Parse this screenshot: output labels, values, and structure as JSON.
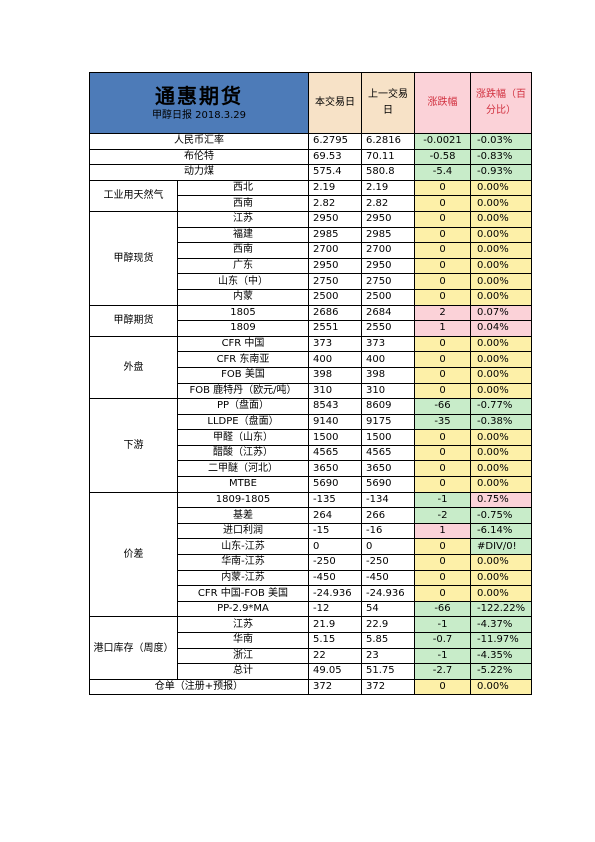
{
  "header": {
    "company": "通惠期货",
    "subtitle": "甲醇日报 2018.3.29",
    "col_today": "本交易日",
    "col_prev": "上一交易日",
    "col_change": "涨跌幅",
    "col_pct": "涨跌幅（百分比）"
  },
  "colors": {
    "title_bg": "#4d7bb8",
    "header_bg": "#f7e2c7",
    "up": "#fbd2d8",
    "down": "#c8ecc9",
    "flat": "#fdf0a8"
  },
  "rows": [
    {
      "label": "人民币汇率",
      "today": "6.2795",
      "prev": "6.2816",
      "change": "-0.0021",
      "pct": "-0.03%",
      "change_color": "green",
      "pct_color": "green"
    },
    {
      "label": "布伦特",
      "today": "69.53",
      "prev": "70.11",
      "change": "-0.58",
      "pct": "-0.83%",
      "change_color": "green",
      "pct_color": "green"
    },
    {
      "label": "动力煤",
      "today": "575.4",
      "prev": "580.8",
      "change": "-5.4",
      "pct": "-0.93%",
      "change_color": "green",
      "pct_color": "green"
    },
    {
      "group": "工业用天然气",
      "label": "西北",
      "today": "2.19",
      "prev": "2.19",
      "change": "0",
      "pct": "0.00%",
      "change_color": "yellow",
      "pct_color": "yellow"
    },
    {
      "label": "西南",
      "today": "2.82",
      "prev": "2.82",
      "change": "0",
      "pct": "0.00%",
      "change_color": "yellow",
      "pct_color": "yellow"
    },
    {
      "group": "甲醇现货",
      "label": "江苏",
      "today": "2950",
      "prev": "2950",
      "change": "0",
      "pct": "0.00%",
      "change_color": "yellow",
      "pct_color": "yellow"
    },
    {
      "label": "福建",
      "today": "2985",
      "prev": "2985",
      "change": "0",
      "pct": "0.00%",
      "change_color": "yellow",
      "pct_color": "yellow"
    },
    {
      "label": "西南",
      "today": "2700",
      "prev": "2700",
      "change": "0",
      "pct": "0.00%",
      "change_color": "yellow",
      "pct_color": "yellow"
    },
    {
      "label": "广东",
      "today": "2950",
      "prev": "2950",
      "change": "0",
      "pct": "0.00%",
      "change_color": "yellow",
      "pct_color": "yellow"
    },
    {
      "label": "山东（中）",
      "today": "2750",
      "prev": "2750",
      "change": "0",
      "pct": "0.00%",
      "change_color": "yellow",
      "pct_color": "yellow"
    },
    {
      "label": "内蒙",
      "today": "2500",
      "prev": "2500",
      "change": "0",
      "pct": "0.00%",
      "change_color": "yellow",
      "pct_color": "yellow"
    },
    {
      "group": "甲醇期货",
      "label": "1805",
      "today": "2686",
      "prev": "2684",
      "change": "2",
      "pct": "0.07%",
      "change_color": "pink",
      "pct_color": "pink"
    },
    {
      "label": "1809",
      "today": "2551",
      "prev": "2550",
      "change": "1",
      "pct": "0.04%",
      "change_color": "pink",
      "pct_color": "pink"
    },
    {
      "group": "外盘",
      "label": "CFR 中国",
      "today": "373",
      "prev": "373",
      "change": "0",
      "pct": "0.00%",
      "change_color": "yellow",
      "pct_color": "yellow"
    },
    {
      "label": "CFR 东南亚",
      "today": "400",
      "prev": "400",
      "change": "0",
      "pct": "0.00%",
      "change_color": "yellow",
      "pct_color": "yellow"
    },
    {
      "label": "FOB 美国",
      "today": "398",
      "prev": "398",
      "change": "0",
      "pct": "0.00%",
      "change_color": "yellow",
      "pct_color": "yellow"
    },
    {
      "label": "FOB 鹿特丹（欧元/吨）",
      "today": "310",
      "prev": "310",
      "change": "0",
      "pct": "0.00%",
      "change_color": "yellow",
      "pct_color": "yellow"
    },
    {
      "group": "下游",
      "label": "PP（盘面）",
      "today": "8543",
      "prev": "8609",
      "change": "-66",
      "pct": "-0.77%",
      "change_color": "green",
      "pct_color": "green"
    },
    {
      "label": "LLDPE（盘面）",
      "today": "9140",
      "prev": "9175",
      "change": "-35",
      "pct": "-0.38%",
      "change_color": "green",
      "pct_color": "green"
    },
    {
      "label": "甲醛（山东）",
      "today": "1500",
      "prev": "1500",
      "change": "0",
      "pct": "0.00%",
      "change_color": "yellow",
      "pct_color": "yellow"
    },
    {
      "label": "醋酸（江苏）",
      "today": "4565",
      "prev": "4565",
      "change": "0",
      "pct": "0.00%",
      "change_color": "yellow",
      "pct_color": "yellow"
    },
    {
      "label": "二甲醚（河北）",
      "today": "3650",
      "prev": "3650",
      "change": "0",
      "pct": "0.00%",
      "change_color": "yellow",
      "pct_color": "yellow"
    },
    {
      "label": "MTBE",
      "today": "5690",
      "prev": "5690",
      "change": "0",
      "pct": "0.00%",
      "change_color": "yellow",
      "pct_color": "yellow"
    },
    {
      "group": "价差",
      "label": "1809-1805",
      "today": "-135",
      "prev": "-134",
      "change": "-1",
      "pct": "0.75%",
      "change_color": "green",
      "pct_color": "pink"
    },
    {
      "label": "基差",
      "today": "264",
      "prev": "266",
      "change": "-2",
      "pct": "-0.75%",
      "change_color": "green",
      "pct_color": "green"
    },
    {
      "label": "进口利润",
      "today": "-15",
      "prev": "-16",
      "change": "1",
      "pct": "-6.14%",
      "change_color": "pink",
      "pct_color": "green"
    },
    {
      "label": "山东-江苏",
      "today": "0",
      "prev": "0",
      "change": "0",
      "pct": "#DIV/0!",
      "change_color": "yellow",
      "pct_color": "green"
    },
    {
      "label": "华南-江苏",
      "today": "-250",
      "prev": "-250",
      "change": "0",
      "pct": "0.00%",
      "change_color": "yellow",
      "pct_color": "yellow"
    },
    {
      "label": "内蒙-江苏",
      "today": "-450",
      "prev": "-450",
      "change": "0",
      "pct": "0.00%",
      "change_color": "yellow",
      "pct_color": "yellow"
    },
    {
      "label": "CFR 中国-FOB 美国",
      "today": "-24.936",
      "prev": "-24.936",
      "change": "0",
      "pct": "0.00%",
      "change_color": "yellow",
      "pct_color": "yellow"
    },
    {
      "label": "PP-2.9*MA",
      "today": "-12",
      "prev": "54",
      "change": "-66",
      "pct": "-122.22%",
      "change_color": "green",
      "pct_color": "green"
    },
    {
      "group": "港口库存（周度）",
      "label": "江苏",
      "today": "21.9",
      "prev": "22.9",
      "change": "-1",
      "pct": "-4.37%",
      "change_color": "green",
      "pct_color": "green"
    },
    {
      "label": "华南",
      "today": "5.15",
      "prev": "5.85",
      "change": "-0.7",
      "pct": "-11.97%",
      "change_color": "green",
      "pct_color": "green"
    },
    {
      "label": "浙江",
      "today": "22",
      "prev": "23",
      "change": "-1",
      "pct": "-4.35%",
      "change_color": "green",
      "pct_color": "green"
    },
    {
      "label": "总计",
      "today": "49.05",
      "prev": "51.75",
      "change": "-2.7",
      "pct": "-5.22%",
      "change_color": "green",
      "pct_color": "green"
    },
    {
      "label": "仓单（注册+预报）",
      "today": "372",
      "prev": "372",
      "change": "0",
      "pct": "0.00%",
      "change_color": "yellow",
      "pct_color": "yellow"
    }
  ]
}
